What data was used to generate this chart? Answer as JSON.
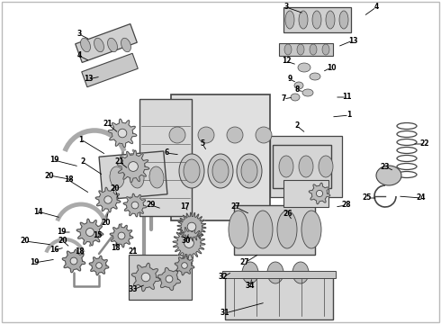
{
  "bg_color": "#ffffff",
  "border_color": "#bbbbbb",
  "line_color": "#444444",
  "text_color": "#000000",
  "fig_width": 4.9,
  "fig_height": 3.6,
  "dpi": 100
}
